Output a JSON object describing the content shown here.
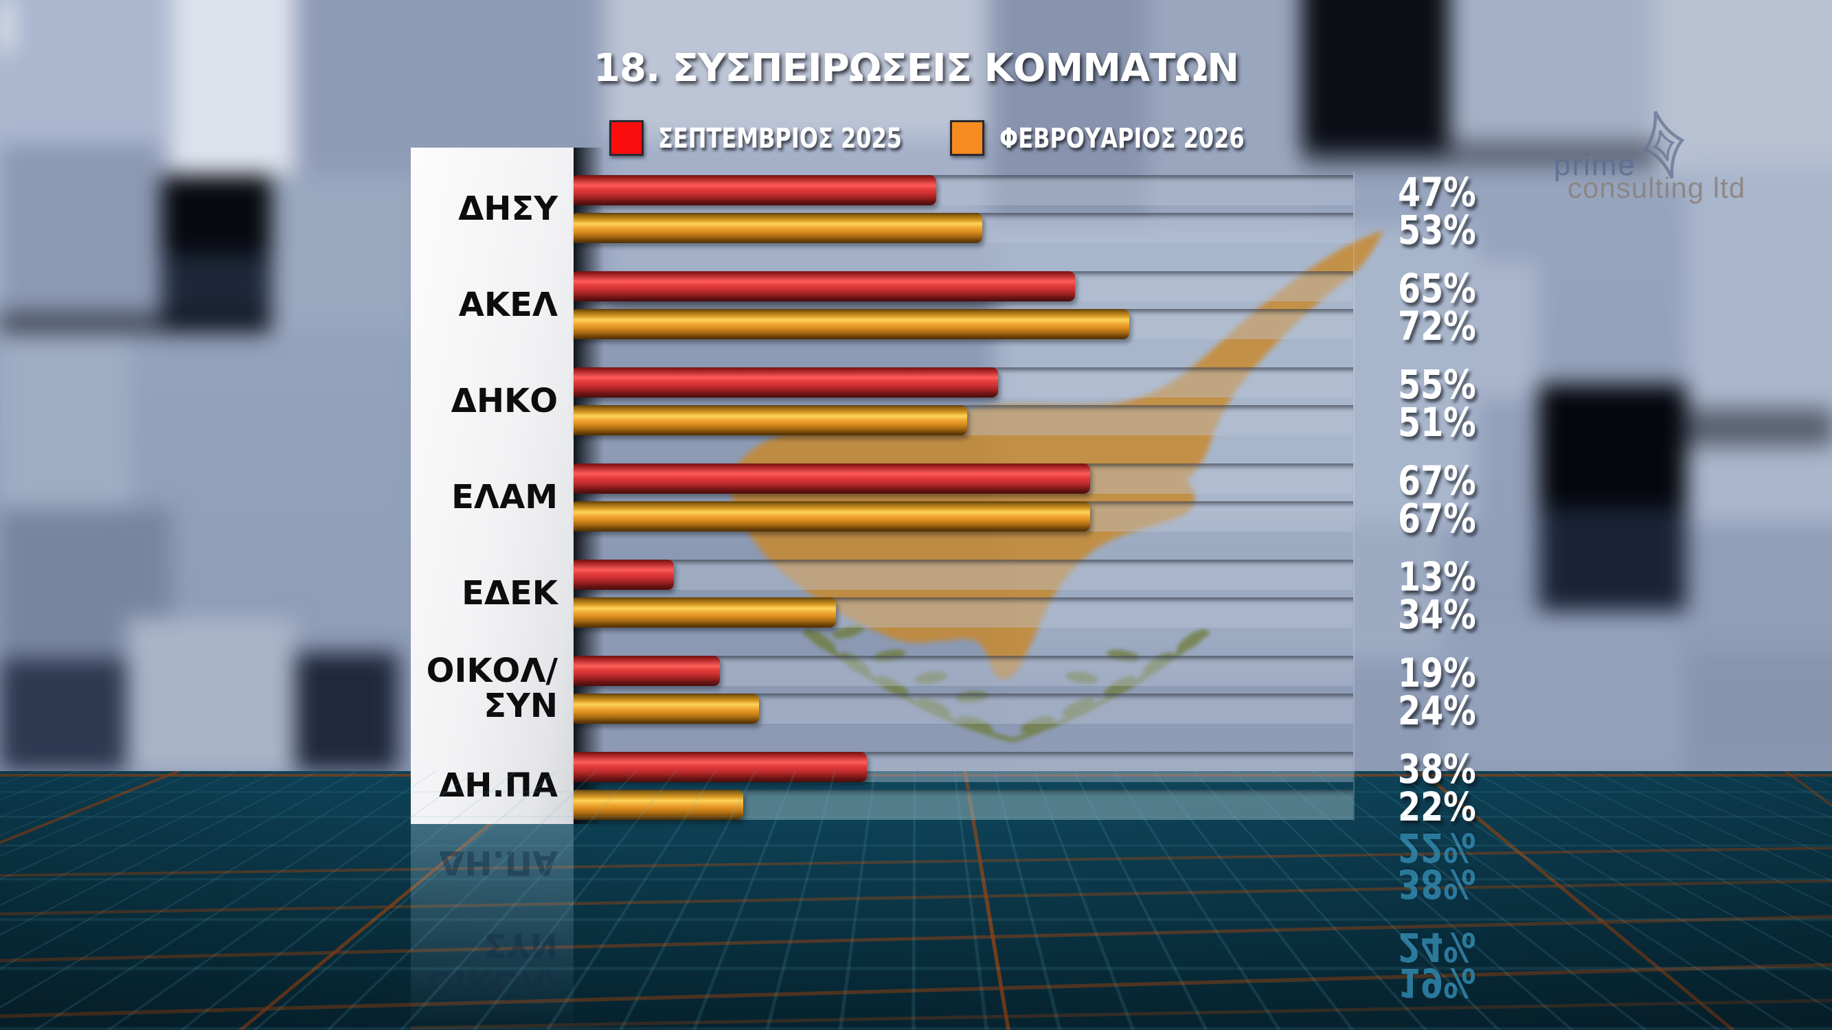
{
  "title": "18. ΣΥΣΠΕΙΡΩΣΕΙΣ ΚΟΜΜΑΤΩΝ",
  "legend": [
    {
      "label": "ΣΕΠΤΕΜΒΡΙΟΣ 2025",
      "color": "#fb0d0d"
    },
    {
      "label": "ΦΕΒΡΟΥΑΡΙΟΣ 2026",
      "color": "#f68b1f"
    }
  ],
  "watermark": {
    "line1": "prime",
    "line2": "consulting ltd"
  },
  "chart_data": {
    "type": "bar",
    "orientation": "horizontal",
    "categories": [
      "ΔΗΣΥ",
      "ΑΚΕΛ",
      "ΔΗΚΟ",
      "ΕΛΑΜ",
      "ΕΔΕΚ",
      "ΟΙΚΟΛ/ΣΥΝ",
      "ΔΗ.ΠΑ"
    ],
    "series": [
      {
        "name": "ΣΕΠΤΕΜΒΡΙΟΣ 2025",
        "color": "#e23838",
        "values": [
          47,
          65,
          55,
          67,
          13,
          19,
          38
        ]
      },
      {
        "name": "ΦΕΒΡΟΥΑΡΙΟΣ 2026",
        "color": "#f2a32c",
        "values": [
          53,
          72,
          51,
          67,
          34,
          24,
          22
        ]
      }
    ],
    "value_suffix": "%",
    "xlim": [
      0,
      100
    ],
    "legend_position": "top",
    "grid": false,
    "value_labels_shown": true
  },
  "reflection": {
    "labels": [
      "ΔΗ.ΠΑ",
      "ΣΥΝ",
      "ΟΙΚΟΛ/"
    ],
    "values": [
      "22%",
      "38%",
      "24%",
      "19%"
    ]
  }
}
